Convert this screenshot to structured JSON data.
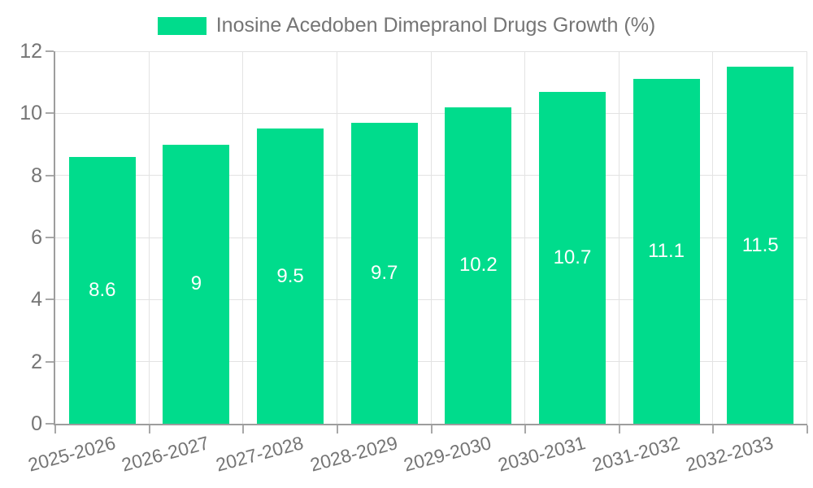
{
  "chart_data": {
    "type": "bar",
    "title": "",
    "legend_label": "Inosine Acedoben Dimepranol Drugs Growth (%)",
    "legend_position": "top-center",
    "categories": [
      "2025-2026",
      "2026-2027",
      "2027-2028",
      "2028-2029",
      "2029-2030",
      "2030-2031",
      "2031-2032",
      "2032-2033"
    ],
    "values": [
      8.6,
      9,
      9.5,
      9.7,
      10.2,
      10.7,
      11.1,
      11.5
    ],
    "xlabel": "",
    "ylabel": "",
    "ylim": [
      0,
      12
    ],
    "ytick_step": 2,
    "yticks": [
      0,
      2,
      4,
      6,
      8,
      10,
      12
    ],
    "grid": "both",
    "colors": {
      "bar": "#00DC8C",
      "bar_label": "#ffffff",
      "grid": "#e3e3e3",
      "axis": "#9d9d9d",
      "tick": "#a8a8a8",
      "text": "#757575",
      "background": "#ffffff"
    }
  }
}
